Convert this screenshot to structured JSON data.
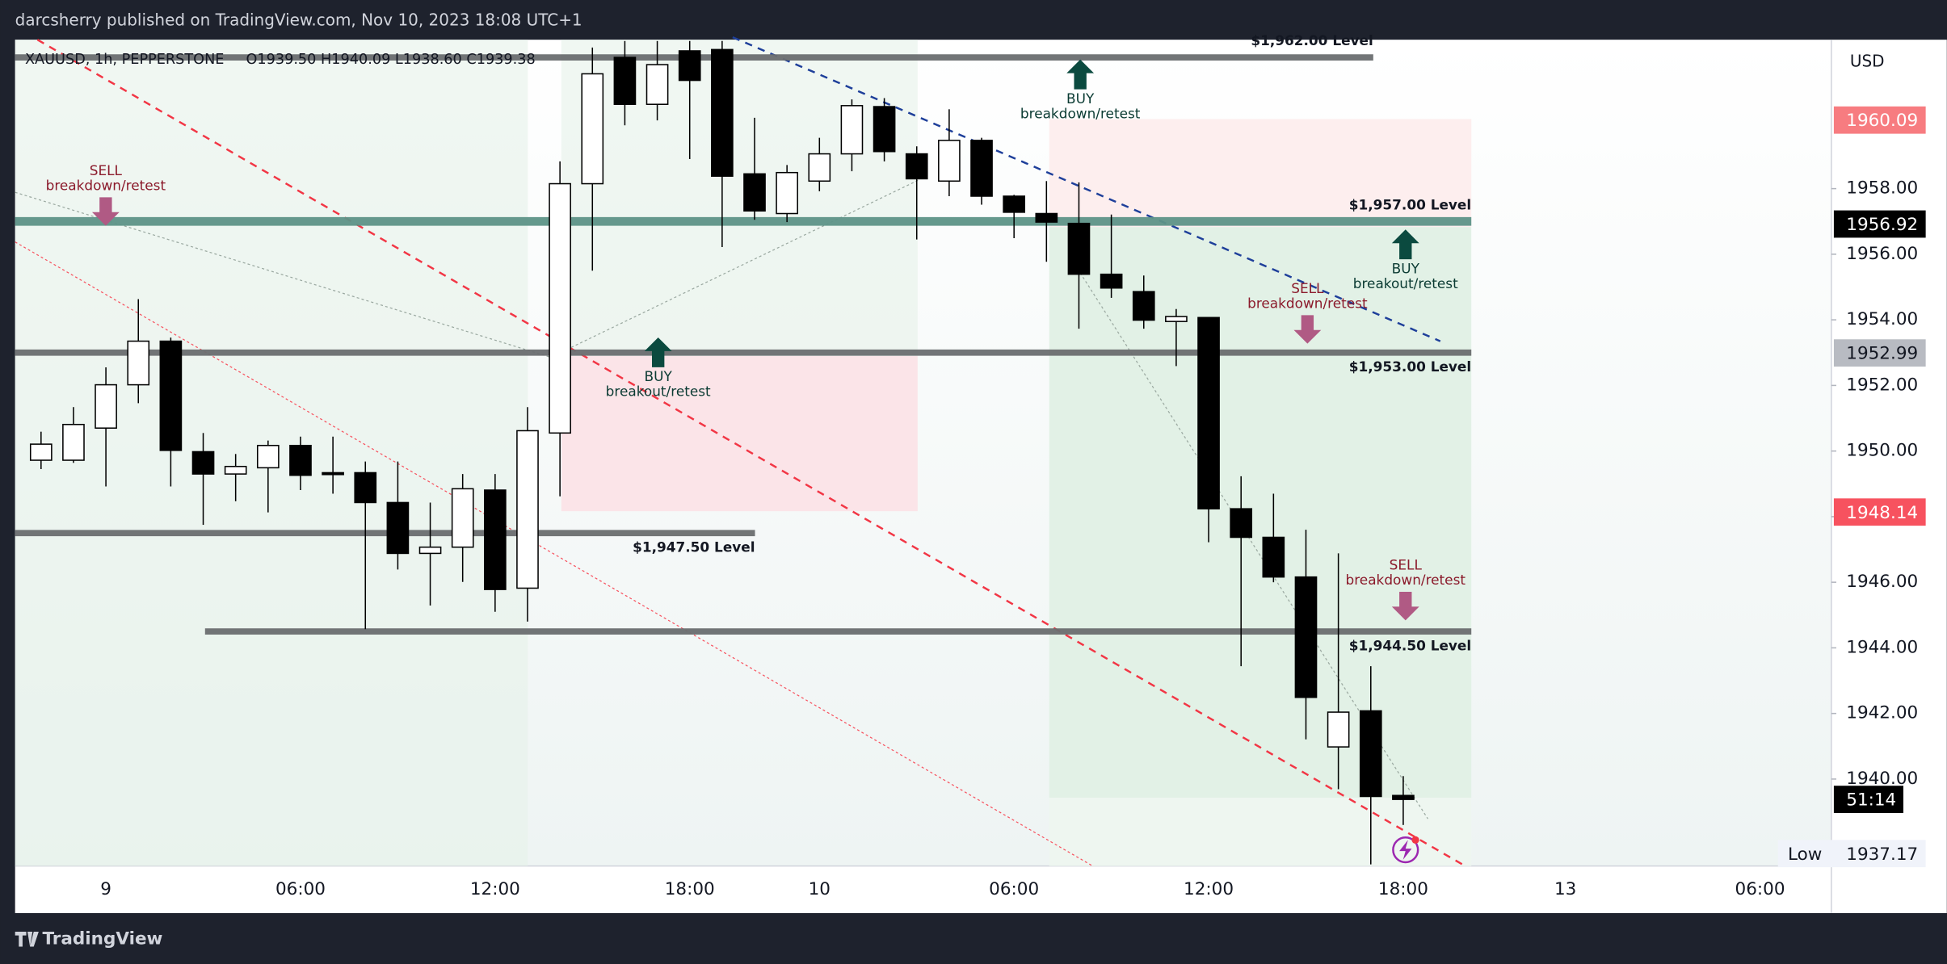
{
  "chart_data": {
    "type": "candlestick",
    "title": "darcsherry published on TradingView.com, Nov 10, 2023 18:08 UTC+1",
    "subtitle": "XAUUSD, 1h, PEPPERSTONE",
    "ohlc_text": "O1939.50  H1940.09  L1938.60  C1939.38",
    "brand": "TradingView",
    "currency": "USD",
    "categories": [
      null,
      null,
      "9",
      null,
      null,
      null,
      null,
      null,
      "06:00",
      null,
      null,
      null,
      null,
      null,
      "12:00",
      null,
      null,
      null,
      null,
      null,
      "18:00",
      null,
      null,
      null,
      "10",
      null,
      null,
      null,
      null,
      null,
      "06:00",
      null,
      null,
      null,
      null,
      null,
      "12:00",
      null,
      null,
      null,
      null,
      null,
      "18:00",
      null,
      null,
      null,
      null,
      "13",
      null,
      null,
      null,
      null,
      null,
      "06:00",
      null
    ],
    "open": [
      1949.72,
      1949.72,
      1950.7,
      1952.02,
      1953.35,
      1949.98,
      1949.3,
      1949.49,
      1950.17,
      1949.34,
      1949.34,
      1948.43,
      1946.88,
      1947.07,
      1948.81,
      1945.82,
      1950.55,
      1958.15,
      1962.0,
      1960.57,
      1962.2,
      1962.24,
      1958.45,
      1957.24,
      1958.23,
      1959.06,
      1960.5,
      1959.06,
      1958.23,
      1959.47,
      1957.77,
      1957.24,
      1956.94,
      1955.39,
      1954.86,
      1953.95,
      1954.07,
      1948.24,
      1947.37,
      1946.16,
      1940.98,
      1942.08,
      1939.5,
      null,
      null,
      null,
      null,
      null,
      null,
      null,
      null,
      null,
      null,
      null,
      null
    ],
    "high": [
      1950.59,
      1951.34,
      1952.55,
      1954.63,
      1953.46,
      1950.55,
      1949.91,
      1950.32,
      1950.44,
      1950.44,
      1949.68,
      1949.68,
      1948.43,
      1949.3,
      1949.3,
      1951.34,
      1958.83,
      1962.3,
      1962.5,
      1962.5,
      1962.5,
      1962.5,
      1960.16,
      1958.72,
      1959.55,
      1960.72,
      1960.76,
      1959.29,
      1960.42,
      1959.55,
      1957.81,
      1958.23,
      1958.19,
      1957.21,
      1955.35,
      1954.33,
      1954.07,
      1949.23,
      1948.7,
      1947.6,
      1946.88,
      1943.44,
      1940.09,
      null,
      null,
      null,
      null,
      null,
      null,
      null,
      null,
      null,
      null,
      null,
      null
    ],
    "low": [
      1949.45,
      1949.64,
      1948.92,
      1951.46,
      1948.92,
      1947.75,
      1948.47,
      1948.13,
      1948.81,
      1948.7,
      1944.57,
      1946.39,
      1945.29,
      1946.01,
      1945.1,
      1944.8,
      1948.62,
      1955.5,
      1959.93,
      1960.08,
      1958.9,
      1956.22,
      1957.05,
      1956.98,
      1957.92,
      1958.53,
      1958.83,
      1956.45,
      1957.77,
      1957.51,
      1956.49,
      1955.77,
      1953.73,
      1954.67,
      1953.73,
      1952.59,
      1947.22,
      1943.44,
      1946.0,
      1941.21,
      1939.69,
      1937.4,
      1938.6,
      null,
      null,
      null,
      null,
      null,
      null,
      null,
      null,
      null,
      null,
      null,
      null
    ],
    "close": [
      1950.21,
      1950.81,
      1952.02,
      1953.35,
      1950.02,
      1949.3,
      1949.53,
      1950.17,
      1949.26,
      1949.3,
      1948.43,
      1946.88,
      1947.07,
      1948.85,
      1945.78,
      1950.62,
      1958.15,
      1961.5,
      1960.57,
      1961.78,
      1961.3,
      1958.38,
      1957.32,
      1958.49,
      1959.06,
      1960.53,
      1959.13,
      1958.3,
      1959.47,
      1957.77,
      1957.28,
      1956.98,
      1955.39,
      1954.97,
      1953.99,
      1954.1,
      1948.24,
      1947.37,
      1946.16,
      1942.49,
      1942.04,
      1939.47,
      1939.38,
      null,
      null,
      null,
      null,
      null,
      null,
      null,
      null,
      null,
      null,
      null,
      null
    ],
    "up_color": "#ffffff",
    "down_color": "#000000",
    "ylim": [
      1937.35,
      1962.54
    ],
    "yticks": [
      {
        "value": 1940,
        "label": "1940.00"
      },
      {
        "value": 1942,
        "label": "1942.00"
      },
      {
        "value": 1944,
        "label": "1944.00"
      },
      {
        "value": 1946,
        "label": "1946.00"
      },
      {
        "value": 1948,
        "label": "1948.00"
      },
      {
        "value": 1950,
        "label": "1950.00"
      },
      {
        "value": 1952,
        "label": "1952.00"
      },
      {
        "value": 1954,
        "label": "1954.00"
      },
      {
        "value": 1956,
        "label": "1956.00"
      },
      {
        "value": 1958,
        "label": "1958.00"
      }
    ],
    "grid": false,
    "levels": [
      {
        "value": 1962,
        "label": "$1,962.00 Level",
        "color": "#6b6e70"
      },
      {
        "value": 1957,
        "label": "$1,957.00 Level",
        "color": "#5e9488"
      },
      {
        "value": 1953,
        "label": "$1,953.00 Level",
        "color": "#6b6e70"
      },
      {
        "value": 1947.5,
        "label": "$1,947.50 Level",
        "color": "#6b6e70"
      },
      {
        "value": 1944.5,
        "label": "$1,944.50 Level",
        "color": "#6b6e70"
      }
    ],
    "price_markers": [
      {
        "value": 1960.09,
        "color": "#f77c80",
        "text_color": "#ffffff"
      },
      {
        "value": 1956.92,
        "color": "#000000",
        "text_color": "#ffffff"
      },
      {
        "value": 1952.99,
        "color": "#b8bbc2",
        "text_color": "#131722"
      },
      {
        "value": 1948.14,
        "color": "#f7525f",
        "text_color": "#ffffff"
      }
    ],
    "countdown": "51:14",
    "low_marker": {
      "label": "Low",
      "value": 1937.17
    },
    "signals": [
      {
        "side": "SELL",
        "note": "breakdown/retest"
      },
      {
        "side": "BUY",
        "note": "breakdown/retest"
      },
      {
        "side": "BUY",
        "note": "breakout/retest"
      },
      {
        "side": "SELL",
        "note": "breakdown/retest"
      },
      {
        "side": "BUY",
        "note": "breakout/retest"
      },
      {
        "side": "SELL",
        "note": "breakdown/retest"
      }
    ]
  }
}
